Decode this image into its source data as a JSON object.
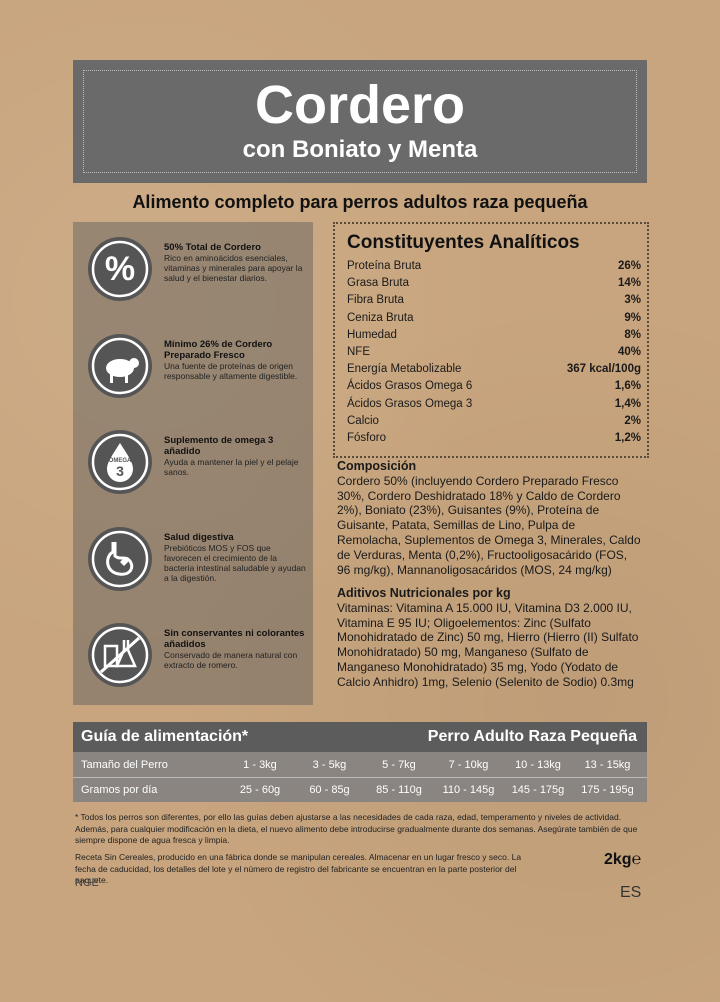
{
  "header": {
    "title": "Cordero",
    "subtitle": "con Boniato y Menta"
  },
  "tagline": "Alimento completo para perros adultos raza pequeña",
  "features": [
    {
      "icon": "%",
      "title": "50% Total de Cordero",
      "text": "Rico en aminoácidos esenciales, vitaminas y minerales para apoyar la salud y el bienestar diarios."
    },
    {
      "title": "Mínimo 26% de Cordero Preparado Fresco",
      "text": "Una fuente de proteínas de origen responsable y altamente digestible."
    },
    {
      "icon": "OMEGA",
      "icon2": "3",
      "title": "Suplemento de omega 3 añadido",
      "text": "Ayuda a mantener la piel y el pelaje sanos."
    },
    {
      "title": "Salud digestiva",
      "text": "Prebióticos MOS y FOS que favorecen el crecimiento de la bacteria intestinal saludable y ayudan a la digestión."
    },
    {
      "title": "Sin conservantes ni colorantes añadidos",
      "text": "Conservado de manera natural con extracto de romero."
    }
  ],
  "analytical": {
    "title": "Constituyentes Analíticos",
    "rows": [
      [
        "Proteína Bruta",
        "26%"
      ],
      [
        "Grasa Bruta",
        "14%"
      ],
      [
        "Fibra Bruta",
        "3%"
      ],
      [
        "Ceniza Bruta",
        "9%"
      ],
      [
        "Humedad",
        "8%"
      ],
      [
        "NFE",
        "40%"
      ],
      [
        "Energía Metabolizable",
        "367 kcal/100g"
      ],
      [
        "Ácidos Grasos Omega 6",
        "1,6%"
      ],
      [
        "Ácidos Grasos Omega 3",
        "1,4%"
      ],
      [
        "Calcio",
        "2%"
      ],
      [
        "Fósforo",
        "1,2%"
      ]
    ]
  },
  "composition": {
    "title": "Composición",
    "text": "Cordero 50% (incluyendo Cordero Preparado Fresco 30%, Cordero Deshidratado 18% y Caldo de Cordero 2%), Boniato (23%), Guisantes (9%), Proteína de Guisante, Patata, Semillas de Lino, Pulpa de Remolacha, Suplementos de Omega 3, Minerales, Caldo de Verduras, Menta (0,2%), Fructooligosacárido (FOS, 96 mg/kg), Mannanoligosacáridos (MOS, 24 mg/kg)"
  },
  "additives": {
    "title": "Aditivos Nutricionales por kg",
    "text": "Vitaminas: Vitamina A 15.000 IU, Vitamina D3 2.000 IU, Vitamina E 95 IU; Oligoelementos: Zinc (Sulfato Monohidratado de Zinc) 50 mg, Hierro (Hierro (II) Sulfato Monohidratado) 50 mg, Manganeso (Sulfato de Manganeso Monohidratado) 35 mg, Yodo (Yodato de Calcio Anhidro) 1mg, Selenio (Selenito de Sodio) 0.3mg"
  },
  "feeding": {
    "title": "Guía de alimentación*",
    "subtitle": "Perro Adulto Raza Pequeña",
    "rows": [
      [
        "Tamaño del Perro",
        "1 - 3kg",
        "3 - 5kg",
        "5 - 7kg",
        "7 - 10kg",
        "10 - 13kg",
        "13 - 15kg"
      ],
      [
        "Gramos por día",
        "25 - 60g",
        "60 - 85g",
        "85 - 110g",
        "110 - 145g",
        "145 - 175g",
        "175 - 195g"
      ]
    ]
  },
  "footnote": "* Todos los perros son diferentes, por ello las guías deben ajustarse a las necesidades de cada raza, edad, temperamento y niveles de actividad. Además, para cualquier modificación en la dieta, el nuevo alimento debe introducirse gradualmente durante dos semanas. Asegúrate también de que siempre dispone de agua fresca y limpia.",
  "storage": "Receta Sin Cereales, producido en una fábrica donde se manipulan cereales. Almacenar en un lugar fresco y seco. La fecha de caducidad, los detalles del lote y el número de registro del fabricante se encuentran en la parte posterior del paquete.",
  "weight": "2kg℮",
  "code": "NGE",
  "language": "ES"
}
